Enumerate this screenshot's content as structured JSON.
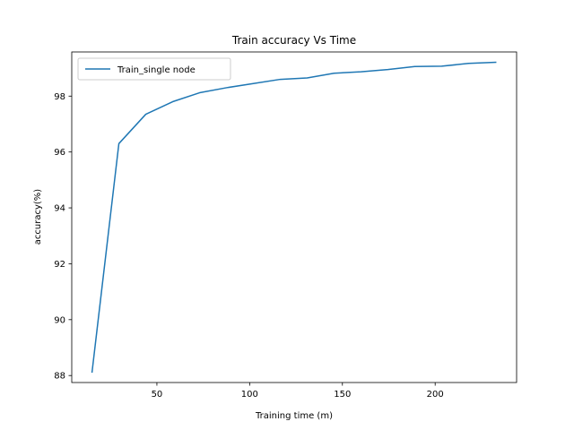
{
  "chart_data": {
    "type": "line",
    "title": "Train accuracy Vs Time",
    "xlabel": "Training time (m)",
    "ylabel": "accuracy(%)",
    "xlim": [
      4.1,
      243.9
    ],
    "ylim": [
      87.75,
      99.58
    ],
    "xticks": [
      50,
      100,
      150,
      200
    ],
    "yticks": [
      88,
      90,
      92,
      94,
      96,
      98
    ],
    "grid": false,
    "legend_position": "top-left",
    "series": [
      {
        "name": "Train_single node",
        "color": "#1f77b4",
        "x": [
          15,
          29.5,
          44,
          58.5,
          73,
          87.5,
          102,
          116.5,
          131,
          145.5,
          160,
          174.5,
          189,
          203.5,
          218,
          233
        ],
        "y": [
          88.1,
          96.3,
          97.35,
          97.8,
          98.12,
          98.3,
          98.45,
          98.6,
          98.65,
          98.82,
          98.87,
          98.95,
          99.06,
          99.07,
          99.17,
          99.21
        ]
      }
    ]
  }
}
